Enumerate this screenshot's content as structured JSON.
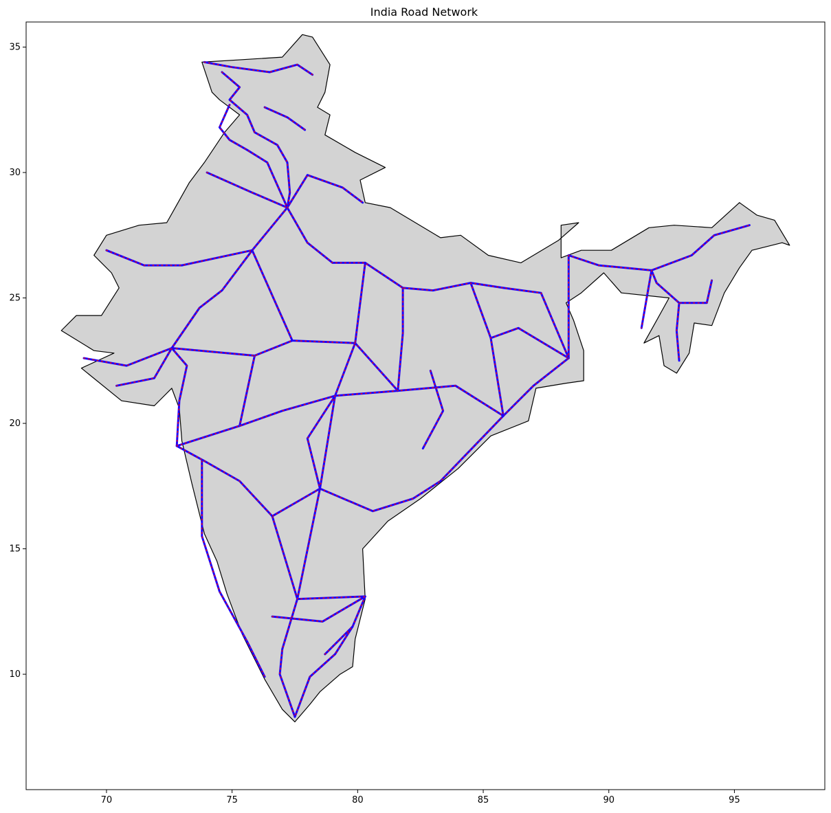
{
  "chart_data": {
    "type": "map",
    "title": "India Road Network",
    "xlabel": "",
    "ylabel": "",
    "x_ticks": [
      70,
      75,
      80,
      85,
      90,
      95
    ],
    "y_ticks": [
      10,
      15,
      20,
      25,
      30,
      35
    ],
    "xlim": [
      66.8,
      98.6
    ],
    "ylim": [
      5.4,
      36.0
    ],
    "grid": false,
    "colors": {
      "land_fill": "#d3d3d3",
      "border": "#000000",
      "road_line": "#1a00ff",
      "road_node": "#ff0000"
    },
    "series": [
      {
        "type": "polygon",
        "role": "land",
        "points": [
          [
            77.8,
            35.5
          ],
          [
            77.0,
            34.6
          ],
          [
            75.4,
            34.5
          ],
          [
            73.8,
            34.4
          ],
          [
            74.2,
            33.2
          ],
          [
            74.5,
            32.9
          ],
          [
            75.3,
            32.3
          ],
          [
            74.7,
            31.6
          ],
          [
            73.9,
            30.4
          ],
          [
            73.3,
            29.6
          ],
          [
            72.4,
            28.0
          ],
          [
            71.3,
            27.9
          ],
          [
            70.0,
            27.5
          ],
          [
            69.5,
            26.7
          ],
          [
            70.2,
            26.0
          ],
          [
            70.5,
            25.4
          ],
          [
            69.8,
            24.3
          ],
          [
            68.8,
            24.3
          ],
          [
            68.2,
            23.7
          ],
          [
            69.5,
            22.9
          ],
          [
            70.3,
            22.8
          ],
          [
            69.0,
            22.2
          ],
          [
            70.6,
            20.9
          ],
          [
            71.9,
            20.7
          ],
          [
            72.6,
            21.4
          ],
          [
            72.9,
            20.6
          ],
          [
            73.0,
            19.3
          ],
          [
            73.4,
            17.6
          ],
          [
            73.9,
            15.6
          ],
          [
            74.4,
            14.5
          ],
          [
            74.8,
            13.2
          ],
          [
            75.4,
            11.6
          ],
          [
            76.3,
            9.8
          ],
          [
            77.0,
            8.6
          ],
          [
            77.5,
            8.1
          ],
          [
            78.1,
            8.8
          ],
          [
            78.5,
            9.3
          ],
          [
            79.3,
            10.0
          ],
          [
            79.8,
            10.3
          ],
          [
            79.9,
            11.4
          ],
          [
            80.3,
            13.0
          ],
          [
            80.2,
            15.0
          ],
          [
            81.2,
            16.1
          ],
          [
            82.5,
            17.0
          ],
          [
            84.0,
            18.2
          ],
          [
            85.3,
            19.5
          ],
          [
            86.8,
            20.1
          ],
          [
            87.1,
            21.4
          ],
          [
            88.3,
            21.6
          ],
          [
            89.0,
            21.7
          ],
          [
            89.0,
            22.9
          ],
          [
            88.6,
            24.1
          ],
          [
            88.3,
            24.8
          ],
          [
            88.9,
            25.2
          ],
          [
            89.8,
            26.0
          ],
          [
            90.5,
            25.2
          ],
          [
            92.4,
            25.0
          ],
          [
            91.9,
            24.1
          ],
          [
            91.4,
            23.2
          ],
          [
            92.0,
            23.5
          ],
          [
            92.2,
            22.3
          ],
          [
            92.7,
            22.0
          ],
          [
            93.2,
            22.8
          ],
          [
            93.4,
            24.0
          ],
          [
            94.1,
            23.9
          ],
          [
            94.6,
            25.2
          ],
          [
            95.2,
            26.2
          ],
          [
            95.7,
            26.9
          ],
          [
            96.9,
            27.2
          ],
          [
            97.2,
            27.1
          ],
          [
            96.6,
            28.1
          ],
          [
            95.9,
            28.3
          ],
          [
            95.2,
            28.8
          ],
          [
            94.1,
            27.8
          ],
          [
            92.6,
            27.9
          ],
          [
            91.6,
            27.8
          ],
          [
            90.1,
            26.9
          ],
          [
            88.9,
            26.9
          ],
          [
            88.1,
            26.6
          ],
          [
            88.1,
            27.9
          ],
          [
            88.8,
            28.0
          ],
          [
            88.0,
            27.3
          ],
          [
            86.5,
            26.4
          ],
          [
            85.2,
            26.7
          ],
          [
            84.1,
            27.5
          ],
          [
            83.3,
            27.4
          ],
          [
            81.3,
            28.6
          ],
          [
            80.3,
            28.8
          ],
          [
            80.1,
            29.7
          ],
          [
            81.1,
            30.2
          ],
          [
            79.9,
            30.8
          ],
          [
            78.7,
            31.5
          ],
          [
            78.9,
            32.3
          ],
          [
            78.4,
            32.6
          ],
          [
            78.7,
            33.2
          ],
          [
            78.9,
            34.3
          ],
          [
            78.2,
            35.4
          ]
        ]
      }
    ],
    "road_paths": [
      [
        [
          73.9,
          34.4
        ],
        [
          75.0,
          34.2
        ],
        [
          76.5,
          34.0
        ],
        [
          77.6,
          34.3
        ],
        [
          78.2,
          33.9
        ]
      ],
      [
        [
          74.6,
          34.0
        ],
        [
          75.3,
          33.4
        ],
        [
          74.9,
          32.9
        ],
        [
          75.6,
          32.3
        ],
        [
          75.9,
          31.6
        ],
        [
          76.8,
          31.1
        ],
        [
          77.2,
          30.4
        ],
        [
          77.3,
          29.2
        ],
        [
          77.2,
          28.6
        ]
      ],
      [
        [
          74.9,
          32.7
        ],
        [
          74.5,
          31.8
        ],
        [
          74.9,
          31.3
        ],
        [
          75.6,
          30.9
        ],
        [
          76.4,
          30.4
        ],
        [
          77.2,
          28.6
        ]
      ],
      [
        [
          77.2,
          28.6
        ],
        [
          78.0,
          27.2
        ],
        [
          79.0,
          26.4
        ],
        [
          80.3,
          26.4
        ],
        [
          81.8,
          25.4
        ],
        [
          83.0,
          25.3
        ],
        [
          84.5,
          25.6
        ],
        [
          85.8,
          25.4
        ],
        [
          87.3,
          25.2
        ],
        [
          88.4,
          22.6
        ]
      ],
      [
        [
          77.2,
          28.6
        ],
        [
          75.8,
          26.9
        ],
        [
          74.6,
          25.3
        ],
        [
          73.7,
          24.6
        ],
        [
          72.6,
          23.0
        ],
        [
          73.2,
          22.3
        ],
        [
          72.9,
          20.9
        ],
        [
          72.8,
          19.1
        ]
      ],
      [
        [
          72.8,
          19.1
        ],
        [
          73.9,
          18.5
        ],
        [
          75.3,
          17.7
        ],
        [
          76.6,
          16.3
        ],
        [
          77.6,
          13.0
        ],
        [
          80.3,
          13.1
        ]
      ],
      [
        [
          72.8,
          19.1
        ],
        [
          75.3,
          19.9
        ],
        [
          77.0,
          20.5
        ],
        [
          79.1,
          21.1
        ],
        [
          81.6,
          21.3
        ],
        [
          83.9,
          21.5
        ],
        [
          85.8,
          20.3
        ],
        [
          87.0,
          21.5
        ],
        [
          88.4,
          22.6
        ]
      ],
      [
        [
          77.6,
          13.0
        ],
        [
          77.0,
          11.0
        ],
        [
          76.9,
          10.0
        ],
        [
          77.5,
          8.3
        ]
      ],
      [
        [
          80.3,
          13.1
        ],
        [
          79.8,
          11.9
        ],
        [
          79.1,
          10.8
        ],
        [
          78.1,
          9.9
        ],
        [
          77.5,
          8.3
        ]
      ],
      [
        [
          78.5,
          17.4
        ],
        [
          79.1,
          21.1
        ],
        [
          79.9,
          23.2
        ],
        [
          80.3,
          26.4
        ]
      ],
      [
        [
          78.5,
          17.4
        ],
        [
          80.6,
          16.5
        ],
        [
          82.2,
          17.0
        ],
        [
          83.3,
          17.7
        ],
        [
          85.8,
          20.3
        ]
      ],
      [
        [
          78.5,
          17.4
        ],
        [
          77.6,
          13.0
        ]
      ],
      [
        [
          78.5,
          17.4
        ],
        [
          76.6,
          16.3
        ]
      ],
      [
        [
          75.8,
          26.9
        ],
        [
          77.4,
          23.3
        ],
        [
          79.9,
          23.2
        ],
        [
          81.6,
          21.3
        ]
      ],
      [
        [
          72.6,
          23.0
        ],
        [
          75.9,
          22.7
        ],
        [
          77.4,
          23.3
        ]
      ],
      [
        [
          75.9,
          22.7
        ],
        [
          75.3,
          19.9
        ]
      ],
      [
        [
          70.0,
          26.9
        ],
        [
          71.5,
          26.3
        ],
        [
          73.0,
          26.3
        ],
        [
          75.8,
          26.9
        ]
      ],
      [
        [
          74.0,
          30.0
        ],
        [
          75.8,
          29.2
        ],
        [
          77.2,
          28.6
        ]
      ],
      [
        [
          77.2,
          28.6
        ],
        [
          78.0,
          29.9
        ],
        [
          79.4,
          29.4
        ],
        [
          80.2,
          28.8
        ]
      ],
      [
        [
          85.3,
          23.4
        ],
        [
          86.4,
          23.8
        ],
        [
          88.4,
          22.6
        ]
      ],
      [
        [
          84.5,
          25.6
        ],
        [
          85.3,
          23.4
        ],
        [
          85.8,
          20.3
        ]
      ],
      [
        [
          81.8,
          25.4
        ],
        [
          81.8,
          23.6
        ],
        [
          81.6,
          21.3
        ]
      ],
      [
        [
          88.4,
          26.7
        ],
        [
          89.6,
          26.3
        ],
        [
          91.7,
          26.1
        ],
        [
          93.3,
          26.7
        ],
        [
          94.2,
          27.5
        ],
        [
          95.6,
          27.9
        ]
      ],
      [
        [
          91.7,
          26.1
        ],
        [
          91.9,
          25.6
        ],
        [
          92.8,
          24.8
        ],
        [
          93.9,
          24.8
        ],
        [
          94.1,
          25.7
        ]
      ],
      [
        [
          92.8,
          24.8
        ],
        [
          92.7,
          23.7
        ],
        [
          92.8,
          22.5
        ]
      ],
      [
        [
          91.7,
          26.1
        ],
        [
          91.3,
          23.8
        ]
      ],
      [
        [
          88.4,
          26.7
        ],
        [
          88.4,
          24.8
        ],
        [
          88.4,
          22.6
        ]
      ],
      [
        [
          79.1,
          21.1
        ],
        [
          78.0,
          19.4
        ],
        [
          78.5,
          17.4
        ]
      ],
      [
        [
          73.8,
          18.5
        ],
        [
          73.8,
          15.5
        ],
        [
          74.5,
          13.3
        ],
        [
          75.6,
          11.3
        ],
        [
          76.3,
          9.9
        ]
      ],
      [
        [
          76.6,
          12.3
        ],
        [
          78.6,
          12.1
        ],
        [
          80.3,
          13.1
        ]
      ],
      [
        [
          78.7,
          10.8
        ],
        [
          79.8,
          11.9
        ]
      ],
      [
        [
          69.1,
          22.6
        ],
        [
          70.8,
          22.3
        ],
        [
          72.6,
          23.0
        ]
      ],
      [
        [
          70.4,
          21.5
        ],
        [
          71.9,
          21.8
        ],
        [
          72.6,
          23.0
        ]
      ],
      [
        [
          82.9,
          22.1
        ],
        [
          83.4,
          20.5
        ],
        [
          82.6,
          19.0
        ]
      ],
      [
        [
          76.3,
          32.6
        ],
        [
          77.2,
          32.2
        ],
        [
          77.9,
          31.7
        ]
      ]
    ]
  }
}
